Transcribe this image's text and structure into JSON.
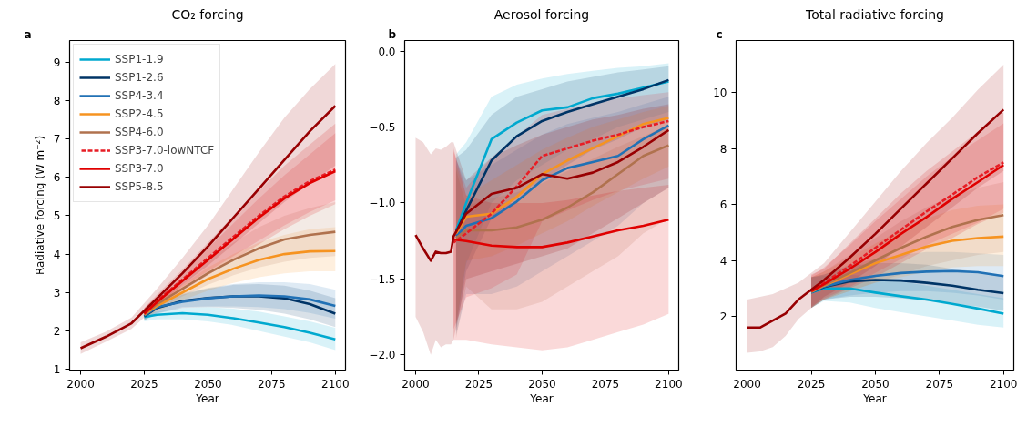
{
  "chart_data": [
    {
      "type": "line",
      "title": "CO₂ forcing",
      "xlabel": "Year",
      "ylabel": "Radiative forcing (W m⁻²)",
      "annotations": [
        "a"
      ],
      "xlim": [
        1995.7,
        2104
      ],
      "ylim": [
        0.98,
        9.56
      ],
      "xticks": [
        2000,
        2025,
        2050,
        2075,
        2100
      ],
      "yticks": [
        1,
        2,
        3,
        4,
        5,
        6,
        7,
        8,
        9
      ],
      "grid": false,
      "legend": "top left",
      "series": [
        {
          "name": "SSP1-1.9",
          "color": "#00a9cf",
          "x": [
            2025,
            2030,
            2040,
            2050,
            2060,
            2070,
            2080,
            2090,
            2100
          ],
          "values": [
            2.36,
            2.42,
            2.46,
            2.42,
            2.33,
            2.22,
            2.1,
            1.95,
            1.78
          ],
          "lower": [
            2.25,
            2.3,
            2.3,
            2.25,
            2.15,
            2.0,
            1.85,
            1.7,
            1.5
          ],
          "upper": [
            2.47,
            2.5,
            2.6,
            2.62,
            2.58,
            2.5,
            2.38,
            2.25,
            2.08
          ]
        },
        {
          "name": "SSP1-2.6",
          "color": "#003466",
          "x": [
            2025,
            2030,
            2040,
            2050,
            2060,
            2070,
            2080,
            2090,
            2100
          ],
          "values": [
            2.38,
            2.6,
            2.78,
            2.86,
            2.9,
            2.9,
            2.85,
            2.7,
            2.45
          ],
          "lower": [
            2.27,
            2.45,
            2.6,
            2.62,
            2.6,
            2.55,
            2.45,
            2.3,
            2.1
          ],
          "upper": [
            2.5,
            2.7,
            2.95,
            3.1,
            3.2,
            3.22,
            3.18,
            3.05,
            2.85
          ]
        },
        {
          "name": "SSP4-3.4",
          "color": "#2171b5",
          "x": [
            2025,
            2030,
            2040,
            2050,
            2060,
            2070,
            2080,
            2090,
            2100
          ],
          "values": [
            2.4,
            2.62,
            2.76,
            2.85,
            2.9,
            2.92,
            2.9,
            2.82,
            2.65
          ],
          "lower": [
            2.28,
            2.47,
            2.62,
            2.64,
            2.64,
            2.62,
            2.57,
            2.47,
            2.32
          ],
          "upper": [
            2.52,
            2.72,
            2.97,
            3.12,
            3.22,
            3.27,
            3.27,
            3.22,
            3.07
          ]
        },
        {
          "name": "SSP2-4.5",
          "color": "#f69320",
          "x": [
            2025,
            2030,
            2040,
            2050,
            2060,
            2070,
            2080,
            2090,
            2100
          ],
          "values": [
            2.42,
            2.65,
            3.0,
            3.35,
            3.62,
            3.85,
            4.0,
            4.07,
            4.08
          ],
          "lower": [
            2.3,
            2.5,
            2.8,
            3.05,
            3.25,
            3.4,
            3.5,
            3.55,
            3.55
          ],
          "upper": [
            2.55,
            2.8,
            3.2,
            3.65,
            4.0,
            4.3,
            4.5,
            4.65,
            4.7
          ]
        },
        {
          "name": "SSP4-6.0",
          "color": "#b0724e",
          "x": [
            2025,
            2030,
            2040,
            2050,
            2060,
            2070,
            2080,
            2090,
            2100
          ],
          "values": [
            2.44,
            2.7,
            3.1,
            3.5,
            3.85,
            4.15,
            4.38,
            4.5,
            4.58
          ],
          "lower": [
            2.32,
            2.55,
            2.9,
            3.2,
            3.45,
            3.65,
            3.8,
            3.9,
            3.95
          ],
          "upper": [
            2.57,
            2.85,
            3.3,
            3.85,
            4.3,
            4.7,
            5.0,
            5.2,
            5.35
          ]
        },
        {
          "name": "SSP3-7.0-lowNTCF",
          "color": "#e71d25",
          "line_style": "dashed",
          "x": [
            2025,
            2030,
            2040,
            2050,
            2060,
            2070,
            2080,
            2090,
            2100
          ],
          "values": [
            2.47,
            2.78,
            3.34,
            3.9,
            4.45,
            5.0,
            5.5,
            5.9,
            6.2
          ],
          "lower": [
            2.36,
            2.68,
            3.15,
            3.55,
            3.95,
            4.35,
            4.75,
            5.1,
            5.4
          ],
          "upper": [
            2.6,
            2.9,
            3.5,
            4.15,
            4.8,
            5.45,
            6.05,
            6.6,
            7.15
          ]
        },
        {
          "name": "SSP3-7.0",
          "color": "#e00000",
          "x": [
            2025,
            2030,
            2040,
            2050,
            2060,
            2070,
            2080,
            2090,
            2100
          ],
          "values": [
            2.45,
            2.75,
            3.3,
            3.85,
            4.4,
            4.95,
            5.45,
            5.85,
            6.16
          ],
          "lower": [
            2.33,
            2.6,
            3.05,
            3.45,
            3.85,
            4.25,
            4.65,
            5.0,
            5.3
          ],
          "upper": [
            2.6,
            2.95,
            3.6,
            4.3,
            5.0,
            5.65,
            6.3,
            6.85,
            7.4
          ]
        },
        {
          "name": "SSP5-8.5",
          "color": "#980002",
          "x": [
            2000,
            2010,
            2020,
            2030,
            2040,
            2050,
            2060,
            2070,
            2080,
            2090,
            2100
          ],
          "values": [
            1.55,
            1.85,
            2.2,
            2.85,
            3.5,
            4.2,
            4.95,
            5.7,
            6.45,
            7.2,
            7.86
          ],
          "lower": [
            1.4,
            1.72,
            2.05,
            2.65,
            3.2,
            3.7,
            4.25,
            4.8,
            5.35,
            5.85,
            6.3
          ],
          "upper": [
            1.7,
            1.98,
            2.35,
            3.1,
            3.9,
            4.75,
            5.7,
            6.65,
            7.55,
            8.3,
            8.95
          ]
        }
      ]
    },
    {
      "type": "line",
      "title": "Aerosol forcing",
      "xlabel": "Year",
      "annotations": [
        "b"
      ],
      "xlim": [
        1995.7,
        2104
      ],
      "ylim": [
        -2.1,
        0.07
      ],
      "xticks": [
        2000,
        2025,
        2050,
        2075,
        2100
      ],
      "yticks": [
        {
          "value": 0,
          "label": "0.0"
        },
        {
          "value": -0.5,
          "label": "−0.5"
        },
        {
          "value": -1,
          "label": "−1.0"
        },
        {
          "value": -1.5,
          "label": "−1.5"
        },
        {
          "value": -2,
          "label": "−2.0"
        }
      ],
      "grid": false,
      "series": [
        {
          "color": "#00a9cf",
          "x": [
            2016,
            2020,
            2030,
            2040,
            2050,
            2060,
            2070,
            2080,
            2090,
            2100
          ],
          "values": [
            -1.18,
            -1.0,
            -0.58,
            -0.47,
            -0.39,
            -0.37,
            -0.31,
            -0.28,
            -0.24,
            -0.2
          ],
          "lower": [
            -1.81,
            -1.4,
            -1.0,
            -0.85,
            -0.75,
            -0.65,
            -0.58,
            -0.5,
            -0.45,
            -0.4
          ],
          "upper": [
            -0.68,
            -0.6,
            -0.3,
            -0.22,
            -0.18,
            -0.15,
            -0.13,
            -0.11,
            -0.1,
            -0.08
          ]
        },
        {
          "color": "#003466",
          "x": [
            2016,
            2020,
            2030,
            2040,
            2050,
            2060,
            2070,
            2080,
            2090,
            2100
          ],
          "values": [
            -1.19,
            -1.05,
            -0.72,
            -0.56,
            -0.46,
            -0.4,
            -0.35,
            -0.3,
            -0.25,
            -0.19
          ],
          "lower": [
            -1.85,
            -1.45,
            -1.1,
            -0.95,
            -0.85,
            -0.75,
            -0.65,
            -0.58,
            -0.5,
            -0.45
          ],
          "upper": [
            -0.7,
            -0.65,
            -0.42,
            -0.3,
            -0.25,
            -0.2,
            -0.17,
            -0.14,
            -0.12,
            -0.1
          ]
        },
        {
          "color": "#2171b5",
          "x": [
            2016,
            2020,
            2030,
            2040,
            2050,
            2060,
            2070,
            2080,
            2090,
            2100
          ],
          "values": [
            -1.22,
            -1.15,
            -1.1,
            -0.99,
            -0.85,
            -0.77,
            -0.73,
            -0.69,
            -0.58,
            -0.49
          ],
          "lower": [
            -1.87,
            -1.6,
            -1.6,
            -1.55,
            -1.45,
            -1.35,
            -1.25,
            -1.15,
            -1.0,
            -0.9
          ],
          "upper": [
            -0.72,
            -0.85,
            -0.75,
            -0.65,
            -0.55,
            -0.48,
            -0.44,
            -0.4,
            -0.35,
            -0.3
          ]
        },
        {
          "color": "#f69320",
          "x": [
            2016,
            2020,
            2030,
            2040,
            2050,
            2060,
            2070,
            2080,
            2090,
            2100
          ],
          "values": [
            -1.2,
            -1.09,
            -1.07,
            -0.96,
            -0.81,
            -0.72,
            -0.64,
            -0.56,
            -0.48,
            -0.44
          ],
          "lower": [
            -1.8,
            -1.38,
            -1.35,
            -1.28,
            -1.2,
            -1.12,
            -1.02,
            -0.93,
            -0.84,
            -0.76
          ],
          "upper": [
            -0.75,
            -0.95,
            -0.85,
            -0.75,
            -0.65,
            -0.57,
            -0.5,
            -0.45,
            -0.4,
            -0.36
          ]
        },
        {
          "color": "#b0724e",
          "x": [
            2016,
            2020,
            2030,
            2040,
            2050,
            2060,
            2070,
            2080,
            2090,
            2100
          ],
          "values": [
            -1.23,
            -1.18,
            -1.18,
            -1.16,
            -1.11,
            -1.03,
            -0.93,
            -0.81,
            -0.69,
            -0.62
          ],
          "lower": [
            -1.89,
            -1.55,
            -1.7,
            -1.7,
            -1.65,
            -1.55,
            -1.45,
            -1.35,
            -1.2,
            -1.1
          ],
          "upper": [
            -0.78,
            -1.02,
            -0.97,
            -0.93,
            -0.87,
            -0.79,
            -0.71,
            -0.63,
            -0.56,
            -0.49
          ]
        },
        {
          "color": "#e71d25",
          "line_style": "dashed",
          "x": [
            2015,
            2020,
            2030,
            2040,
            2050,
            2060,
            2070,
            2080,
            2090,
            2100
          ],
          "values": [
            -1.26,
            -1.2,
            -1.07,
            -0.89,
            -0.69,
            -0.64,
            -0.59,
            -0.55,
            -0.5,
            -0.46
          ],
          "lower": [
            -1.83,
            -1.62,
            -1.56,
            -1.47,
            -1.12,
            -1.05,
            -0.98,
            -0.92,
            -0.88,
            -0.84
          ],
          "upper": [
            -0.66,
            -0.9,
            -0.7,
            -0.56,
            -0.42,
            -0.38,
            -0.34,
            -0.31,
            -0.29,
            -0.27
          ]
        },
        {
          "color": "#e00000",
          "x": [
            2015,
            2020,
            2030,
            2040,
            2050,
            2060,
            2070,
            2080,
            2090,
            2100
          ],
          "values": [
            -1.24,
            -1.25,
            -1.28,
            -1.29,
            -1.29,
            -1.26,
            -1.22,
            -1.18,
            -1.15,
            -1.11
          ],
          "lower": [
            -1.9,
            -1.9,
            -1.93,
            -1.95,
            -1.97,
            -1.95,
            -1.9,
            -1.85,
            -1.8,
            -1.73
          ],
          "upper": [
            -0.64,
            -0.95,
            -1.0,
            -1.0,
            -1.0,
            -0.98,
            -0.95,
            -0.92,
            -0.9,
            -0.88
          ]
        },
        {
          "color": "#980002",
          "x": [
            2000,
            2003,
            2006,
            2008,
            2010,
            2012,
            2014,
            2015,
            2020,
            2030,
            2040,
            2050,
            2060,
            2070,
            2080,
            2090,
            2100
          ],
          "values": [
            -1.21,
            -1.3,
            -1.38,
            -1.32,
            -1.33,
            -1.33,
            -1.32,
            -1.22,
            -1.07,
            -0.94,
            -0.9,
            -0.81,
            -0.84,
            -0.8,
            -0.73,
            -0.63,
            -0.52
          ],
          "lower": [
            -1.75,
            -1.85,
            -2.0,
            -1.9,
            -1.95,
            -1.93,
            -1.93,
            -1.9,
            -1.5,
            -1.45,
            -1.4,
            -1.35,
            -1.3,
            -1.2,
            -1.1,
            -1.0,
            -0.9
          ],
          "upper": [
            -0.57,
            -0.6,
            -0.68,
            -0.64,
            -0.65,
            -0.63,
            -0.6,
            -0.6,
            -0.85,
            -0.7,
            -0.62,
            -0.55,
            -0.5,
            -0.45,
            -0.42,
            -0.38,
            -0.35
          ]
        }
      ]
    },
    {
      "type": "line",
      "title": "Total radiative forcing",
      "xlabel": "Year",
      "annotations": [
        "c"
      ],
      "xlim": [
        1995.7,
        2104
      ],
      "ylim": [
        0.08,
        11.86
      ],
      "xticks": [
        2000,
        2025,
        2050,
        2075,
        2100
      ],
      "yticks": [
        2,
        4,
        6,
        8,
        10
      ],
      "grid": false,
      "series": [
        {
          "color": "#00a9cf",
          "x": [
            2025,
            2030,
            2040,
            2050,
            2060,
            2070,
            2080,
            2090,
            2100
          ],
          "values": [
            2.85,
            3.0,
            3.0,
            2.85,
            2.72,
            2.6,
            2.45,
            2.28,
            2.1
          ],
          "lower": [
            2.3,
            2.55,
            2.5,
            2.3,
            2.15,
            2.0,
            1.85,
            1.7,
            1.6
          ],
          "upper": [
            3.4,
            3.45,
            3.5,
            3.4,
            3.25,
            3.1,
            2.95,
            2.8,
            2.65
          ]
        },
        {
          "color": "#003466",
          "x": [
            2025,
            2030,
            2040,
            2050,
            2060,
            2070,
            2080,
            2090,
            2100
          ],
          "values": [
            2.86,
            3.05,
            3.25,
            3.3,
            3.28,
            3.2,
            3.1,
            2.95,
            2.83
          ],
          "lower": [
            2.3,
            2.6,
            2.7,
            2.7,
            2.65,
            2.55,
            2.45,
            2.35,
            2.2
          ],
          "upper": [
            3.4,
            3.5,
            3.8,
            3.9,
            3.9,
            3.85,
            3.7,
            3.6,
            3.45
          ]
        },
        {
          "color": "#2171b5",
          "x": [
            2025,
            2030,
            2040,
            2050,
            2060,
            2070,
            2080,
            2090,
            2100
          ],
          "values": [
            2.85,
            3.07,
            3.3,
            3.45,
            3.55,
            3.6,
            3.62,
            3.58,
            3.44
          ],
          "lower": [
            2.3,
            2.6,
            2.75,
            2.85,
            2.9,
            2.9,
            2.85,
            2.75,
            2.6
          ],
          "upper": [
            3.4,
            3.5,
            3.85,
            4.05,
            4.2,
            4.3,
            4.3,
            4.25,
            4.2
          ]
        },
        {
          "color": "#f69320",
          "x": [
            2025,
            2030,
            2040,
            2050,
            2060,
            2070,
            2080,
            2090,
            2100
          ],
          "values": [
            2.88,
            3.1,
            3.5,
            3.9,
            4.2,
            4.5,
            4.7,
            4.8,
            4.85
          ],
          "lower": [
            2.3,
            2.6,
            2.9,
            3.2,
            3.4,
            3.6,
            3.75,
            3.8,
            3.8
          ],
          "upper": [
            3.4,
            3.6,
            4.1,
            4.6,
            5.1,
            5.5,
            5.8,
            5.95,
            6.0
          ]
        },
        {
          "color": "#b0724e",
          "x": [
            2025,
            2030,
            2040,
            2050,
            2060,
            2070,
            2080,
            2090,
            2100
          ],
          "values": [
            2.9,
            3.12,
            3.55,
            4.0,
            4.45,
            4.85,
            5.2,
            5.45,
            5.62
          ],
          "lower": [
            2.3,
            2.6,
            2.9,
            3.2,
            3.5,
            3.8,
            4.0,
            4.2,
            4.3
          ],
          "upper": [
            3.4,
            3.6,
            4.2,
            4.8,
            5.4,
            5.9,
            6.3,
            6.6,
            6.8
          ]
        },
        {
          "color": "#e71d25",
          "line_style": "dashed",
          "x": [
            2025,
            2030,
            2040,
            2050,
            2060,
            2070,
            2080,
            2090,
            2100
          ],
          "values": [
            2.92,
            3.2,
            3.8,
            4.45,
            5.1,
            5.75,
            6.35,
            6.98,
            7.5
          ],
          "lower": [
            2.35,
            2.65,
            3.05,
            3.55,
            4.05,
            4.55,
            4.95,
            5.35,
            5.85
          ],
          "upper": [
            3.45,
            3.75,
            4.55,
            5.4,
            6.2,
            7.0,
            7.7,
            8.3,
            8.9
          ]
        },
        {
          "color": "#e00000",
          "x": [
            2025,
            2030,
            2040,
            2050,
            2060,
            2070,
            2080,
            2090,
            2100
          ],
          "values": [
            2.9,
            3.15,
            3.7,
            4.3,
            4.95,
            5.55,
            6.2,
            6.8,
            7.41
          ],
          "lower": [
            2.3,
            2.6,
            3.0,
            3.4,
            3.9,
            4.4,
            4.8,
            5.3,
            5.7
          ],
          "upper": [
            3.5,
            3.7,
            4.6,
            5.5,
            6.4,
            7.2,
            7.9,
            8.6,
            9.3
          ]
        },
        {
          "color": "#980002",
          "x": [
            2000,
            2005,
            2010,
            2015,
            2020,
            2030,
            2040,
            2050,
            2060,
            2070,
            2080,
            2090,
            2100
          ],
          "values": [
            1.6,
            1.6,
            1.85,
            2.1,
            2.6,
            3.3,
            4.1,
            4.95,
            5.85,
            6.75,
            7.65,
            8.55,
            9.39
          ],
          "lower": [
            0.7,
            0.75,
            0.9,
            1.3,
            1.9,
            2.7,
            3.2,
            3.8,
            4.5,
            5.2,
            5.9,
            6.6,
            7.2
          ],
          "upper": [
            2.6,
            2.7,
            2.8,
            3.0,
            3.2,
            3.9,
            5.0,
            6.1,
            7.2,
            8.2,
            9.1,
            10.1,
            11.0
          ]
        }
      ]
    }
  ]
}
